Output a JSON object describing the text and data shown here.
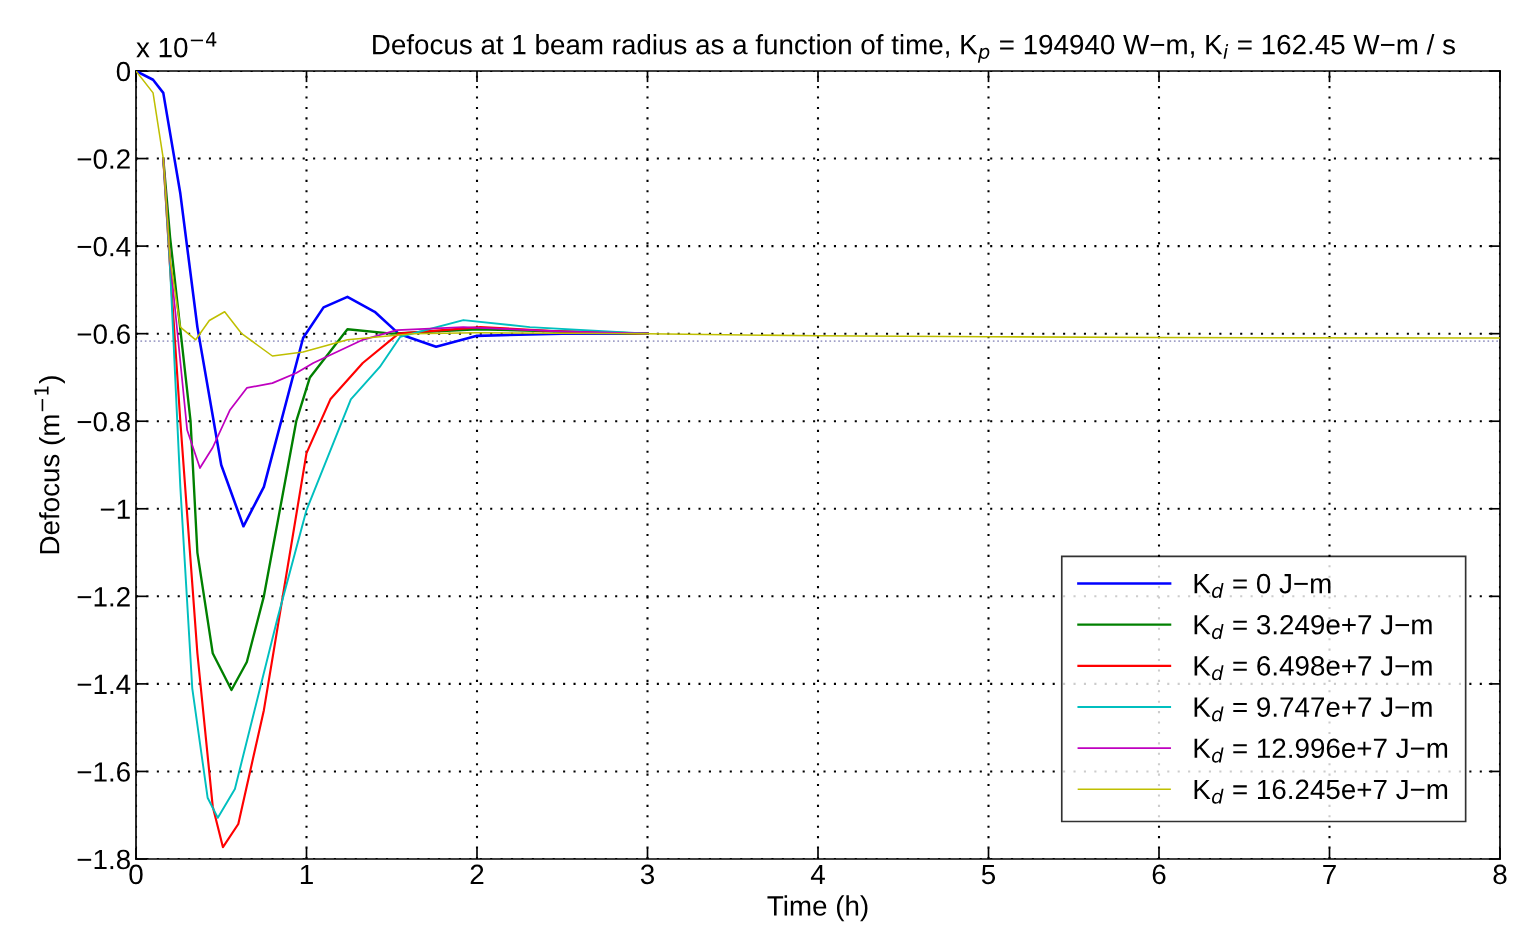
{
  "chart_data": {
    "type": "line",
    "title": "Defocus at 1 beam radius as a function of time, K$_{p}$ = 194940 W−m, K$_{i}$ = 162.45 W−m / s",
    "xlabel": "Time (h)",
    "ylabel": "Defocus (m$^{−1}$)",
    "annotations": [
      "x 10$^{−4}$"
    ],
    "xlim": [
      0,
      8
    ],
    "ylim": [
      -1.8,
      0
    ],
    "xticks": [
      0,
      1,
      2,
      3,
      4,
      5,
      6,
      7,
      8
    ],
    "yticks": [
      {
        "value": -1.8,
        "label": "−1.8"
      },
      {
        "value": -1.6,
        "label": "−1.6"
      },
      {
        "value": -1.4,
        "label": "−1.4"
      },
      {
        "value": -1.2,
        "label": "−1.2"
      },
      {
        "value": -1,
        "label": "−1"
      },
      {
        "value": -0.8,
        "label": "−0.8"
      },
      {
        "value": -0.6,
        "label": "−0.6"
      },
      {
        "value": -0.4,
        "label": "−0.4"
      },
      {
        "value": -0.2,
        "label": "−0.2"
      },
      {
        "value": 0,
        "label": "0"
      }
    ],
    "grid": true,
    "legend": "bottom right",
    "line_style": "solid",
    "marker": "none",
    "ref_lines": [
      {
        "axis": "y",
        "value": -0.617,
        "color": "#a0a0c8",
        "line_style": "dotted"
      }
    ],
    "series": [
      {
        "name": "K$_{d}$ = 0 J−m",
        "color": "#0000ff",
        "x": [
          0,
          0.1,
          0.16,
          0.26,
          0.36,
          0.5,
          0.63,
          0.75,
          0.98,
          1.1,
          1.24,
          1.4,
          1.54,
          1.76,
          2,
          2.5,
          3
        ],
        "values": [
          0,
          -0.02,
          -0.05,
          -0.28,
          -0.585,
          -0.9,
          -1.04,
          -0.95,
          -0.61,
          -0.54,
          -0.516,
          -0.55,
          -0.6,
          -0.63,
          -0.605,
          -0.6,
          -0.6
        ]
      },
      {
        "name": "K$_{d}$ = 3.249e+7 J−m",
        "color": "#008000",
        "x": [
          0.16,
          0.2,
          0.32,
          0.36,
          0.45,
          0.56,
          0.65,
          0.75,
          0.94,
          1.02,
          1.24,
          1.5,
          2,
          2.5,
          3
        ],
        "values": [
          -0.2,
          -0.38,
          -0.8,
          -1.1,
          -1.33,
          -1.414,
          -1.35,
          -1.2,
          -0.8,
          -0.7,
          -0.59,
          -0.6,
          -0.59,
          -0.595,
          -0.6
        ]
      },
      {
        "name": "K$_{d}$ = 6.498e+7 J−m",
        "color": "#ff0000",
        "x": [
          0.16,
          0.2,
          0.26,
          0.36,
          0.45,
          0.51,
          0.6,
          0.75,
          1,
          1.14,
          1.33,
          1.54,
          2.02,
          2.5,
          3
        ],
        "values": [
          -0.2,
          -0.45,
          -0.8,
          -1.33,
          -1.68,
          -1.773,
          -1.72,
          -1.46,
          -0.873,
          -0.75,
          -0.667,
          -0.6,
          -0.585,
          -0.595,
          -0.6
        ]
      },
      {
        "name": "K$_{d}$ = 9.747e+7 J−m",
        "color": "#00bfbf",
        "x": [
          0.16,
          0.2,
          0.26,
          0.33,
          0.42,
          0.48,
          0.58,
          0.83,
          1,
          1.26,
          1.43,
          1.55,
          1.92,
          2.31,
          3
        ],
        "values": [
          -0.2,
          -0.45,
          -0.95,
          -1.41,
          -1.66,
          -1.706,
          -1.64,
          -1.25,
          -1.003,
          -0.75,
          -0.676,
          -0.607,
          -0.569,
          -0.585,
          -0.6
        ]
      },
      {
        "name": "K$_{d}$ = 12.996e+7 J−m",
        "color": "#bf00bf",
        "x": [
          0.16,
          0.2,
          0.3,
          0.375,
          0.45,
          0.55,
          0.65,
          0.8,
          0.94,
          1.04,
          1.33,
          1.53,
          1.92,
          2.5,
          3
        ],
        "values": [
          -0.2,
          -0.43,
          -0.82,
          -0.907,
          -0.86,
          -0.775,
          -0.724,
          -0.713,
          -0.69,
          -0.667,
          -0.614,
          -0.592,
          -0.585,
          -0.595,
          -0.6
        ]
      },
      {
        "name": "K$_{d}$ = 16.245e+7 J−m",
        "color": "#bfbf00",
        "x": [
          0,
          0.1,
          0.16,
          0.2,
          0.26,
          0.35,
          0.43,
          0.52,
          0.62,
          0.8,
          0.98,
          1.24,
          1.62,
          2,
          3,
          4,
          5,
          6,
          8
        ],
        "values": [
          0,
          -0.05,
          -0.2,
          -0.43,
          -0.585,
          -0.614,
          -0.57,
          -0.55,
          -0.6,
          -0.651,
          -0.642,
          -0.614,
          -0.6,
          -0.598,
          -0.6,
          -0.605,
          -0.607,
          -0.609,
          -0.61
        ]
      }
    ]
  }
}
